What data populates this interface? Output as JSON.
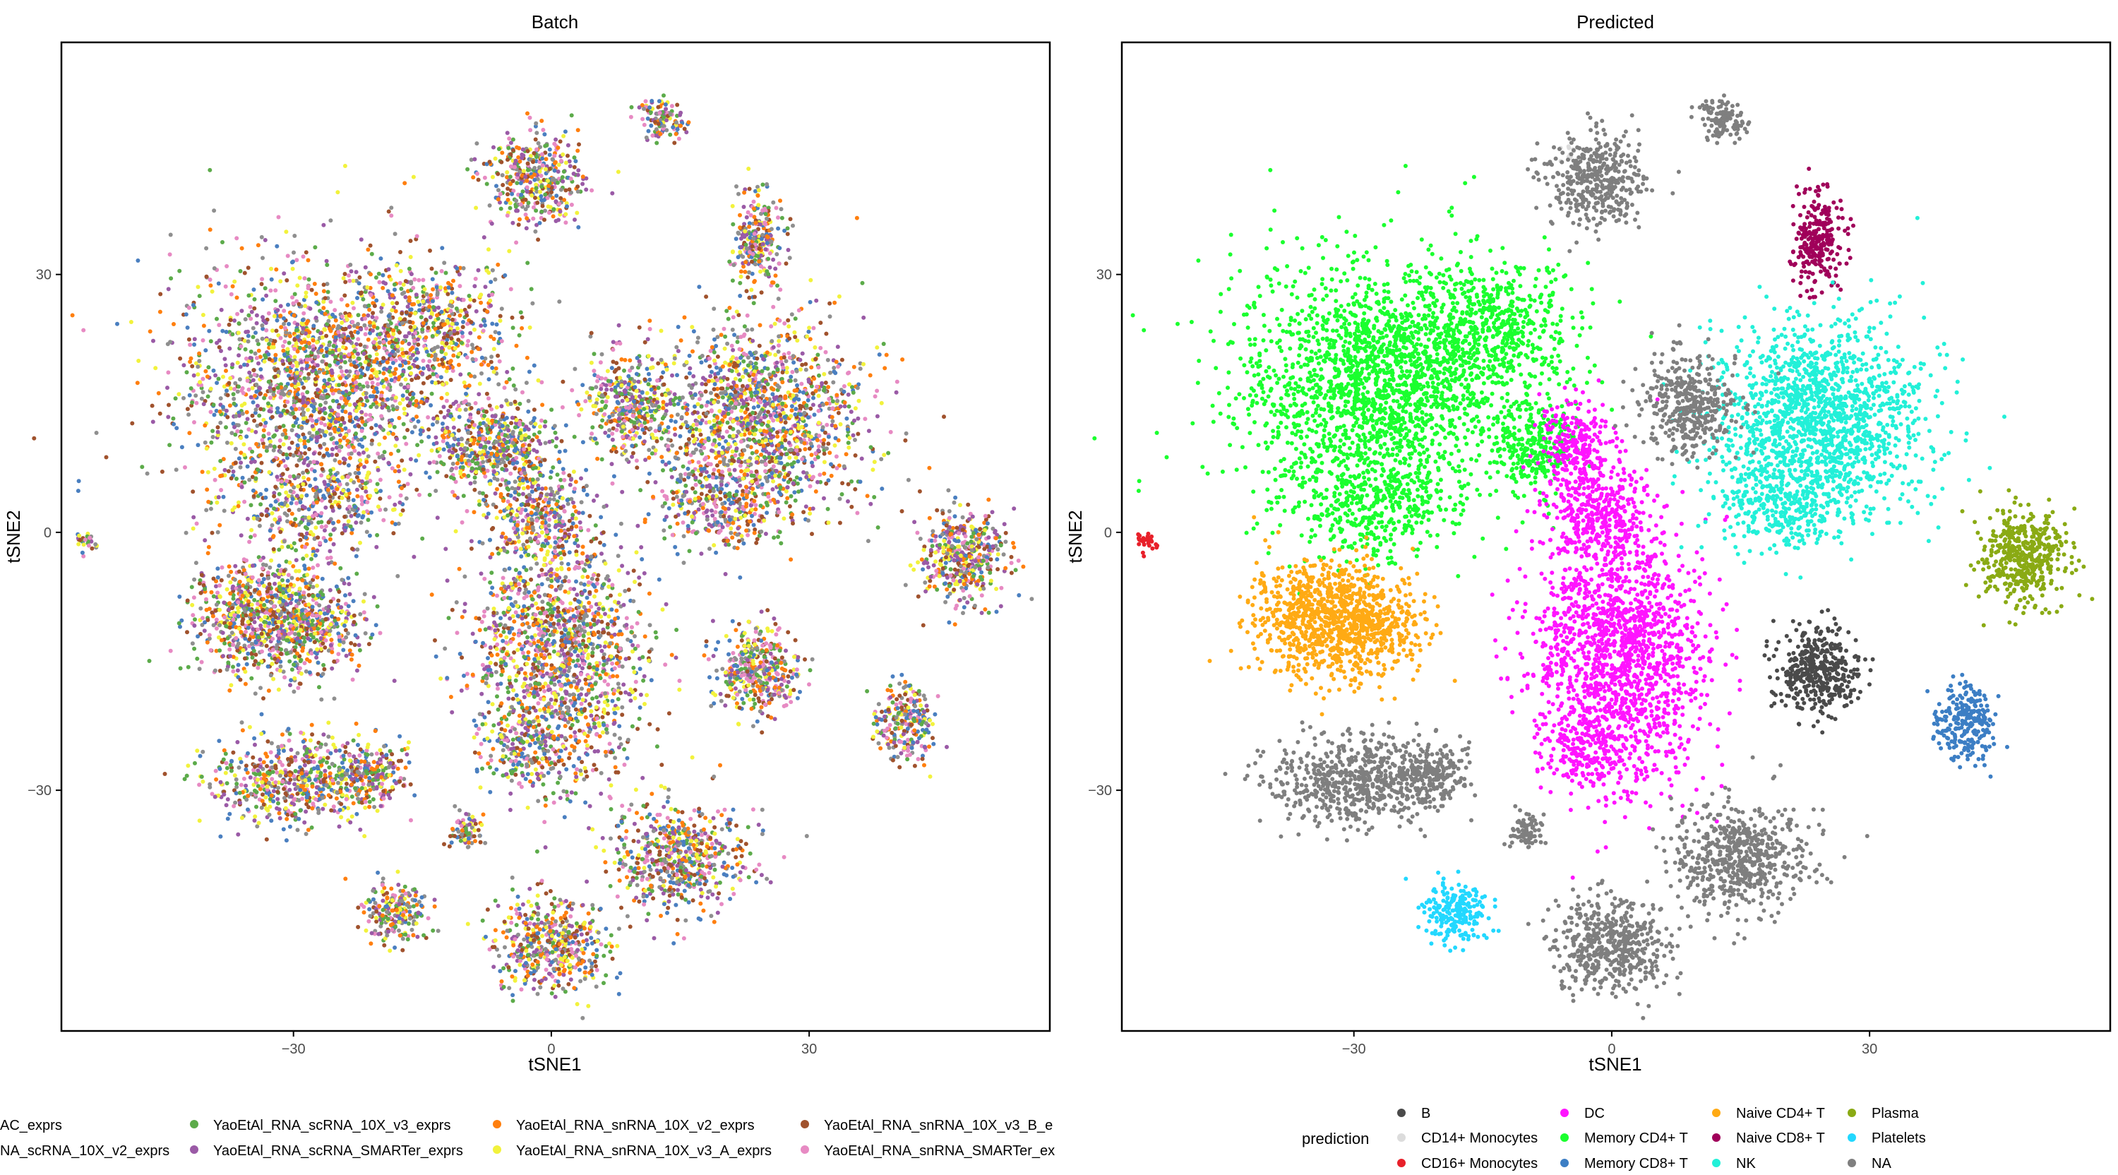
{
  "chart_data": [
    {
      "type": "scatter",
      "title": "Batch",
      "xlabel": "tSNE1",
      "ylabel": "tSNE2",
      "xlim": [
        -57,
        58
      ],
      "ylim": [
        -58,
        57
      ],
      "x_ticks": [
        -30,
        0,
        30
      ],
      "y_ticks": [
        -30,
        0,
        30
      ],
      "x_tick_labels": [
        "−30",
        "0",
        "30"
      ],
      "y_tick_labels": [
        "−30",
        "0",
        "30"
      ],
      "grid": false,
      "legend_position": "bottom",
      "legend_entries": [
        {
          "label": "AC_exprs",
          "color": "#4a7fc0"
        },
        {
          "label": "NA_scRNA_10X_v2_exprs",
          "color": "#8f8f8f"
        },
        {
          "label": "YaoEtAl_RNA_scRNA_10X_v3_exprs",
          "color": "#5cab4a"
        },
        {
          "label": "YaoEtAl_RNA_scRNA_SMARTer_exprs",
          "color": "#9a5aa6"
        },
        {
          "label": "YaoEtAl_RNA_snRNA_10X_v2_exprs",
          "color": "#ff7f0e"
        },
        {
          "label": "YaoEtAl_RNA_snRNA_10X_v3_A_exprs",
          "color": "#f2f23c"
        },
        {
          "label": "YaoEtAl_RNA_snRNA_10X_v3_B_e",
          "color": "#a0522d"
        },
        {
          "label": "YaoEtAl_RNA_snRNA_SMARTer_ex",
          "color": "#e78ac3"
        }
      ]
    },
    {
      "type": "scatter",
      "title": "Predicted",
      "xlabel": "tSNE1",
      "ylabel": "tSNE2",
      "xlim": [
        -57,
        58
      ],
      "ylim": [
        -58,
        57
      ],
      "x_ticks": [
        -30,
        0,
        30
      ],
      "y_ticks": [
        -30,
        0,
        30
      ],
      "x_tick_labels": [
        "−30",
        "0",
        "30"
      ],
      "y_tick_labels": [
        "−30",
        "0",
        "30"
      ],
      "grid": false,
      "legend_position": "bottom",
      "legend_title": "prediction",
      "legend_entries": [
        {
          "label": "B",
          "color": "#4a4a4a"
        },
        {
          "label": "CD14+ Monocytes",
          "color": "#dcdcdc"
        },
        {
          "label": "CD16+ Monocytes",
          "color": "#e8202a"
        },
        {
          "label": "DC",
          "color": "#ff14ff"
        },
        {
          "label": "Memory CD4+ T",
          "color": "#1aff2e"
        },
        {
          "label": "Memory CD8+ T",
          "color": "#3c7ec4"
        },
        {
          "label": "Naive CD4+ T",
          "color": "#ffaa14"
        },
        {
          "label": "Naive CD8+ T",
          "color": "#a0005a"
        },
        {
          "label": "NK",
          "color": "#22f0d8"
        },
        {
          "label": "Plasma",
          "color": "#8aaa14"
        },
        {
          "label": "Platelets",
          "color": "#22d8ff"
        },
        {
          "label": "NA",
          "color": "#7f7f7f"
        }
      ]
    }
  ]
}
